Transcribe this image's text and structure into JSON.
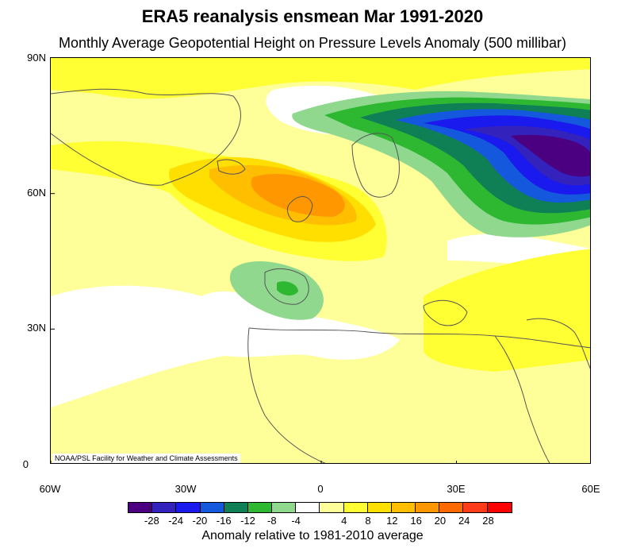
{
  "title": "ERA5 reanalysis ensmean Mar 1991-2020",
  "subtitle": "Monthly Average Geopotential Height on Pressure Levels Anomaly (500 millibar)",
  "credit": "NOAA/PSL Facility for Weather and Climate Assessments",
  "map": {
    "lat_labels": [
      "90N",
      "60N",
      "30N",
      "0"
    ],
    "lon_labels": [
      "60W",
      "30W",
      "0",
      "30E",
      "60E"
    ],
    "lat_range": [
      0,
      90
    ],
    "lon_range": [
      -60,
      60
    ]
  },
  "colorbar": {
    "colors": [
      "#4b0082",
      "#3322bb",
      "#1a1aee",
      "#1459dd",
      "#0f7f55",
      "#2eb832",
      "#8fd88e",
      "#ffffff",
      "#ffff99",
      "#ffff33",
      "#ffdf00",
      "#ffbf00",
      "#ff9800",
      "#ff6a00",
      "#ff3b1a",
      "#ff0000"
    ],
    "tick_labels": [
      "-28",
      "-24",
      "-20",
      "-16",
      "-12",
      "-8",
      "-4",
      "4",
      "8",
      "12",
      "16",
      "20",
      "24",
      "28"
    ],
    "caption": "Anomaly relative to 1981-2010 average"
  }
}
